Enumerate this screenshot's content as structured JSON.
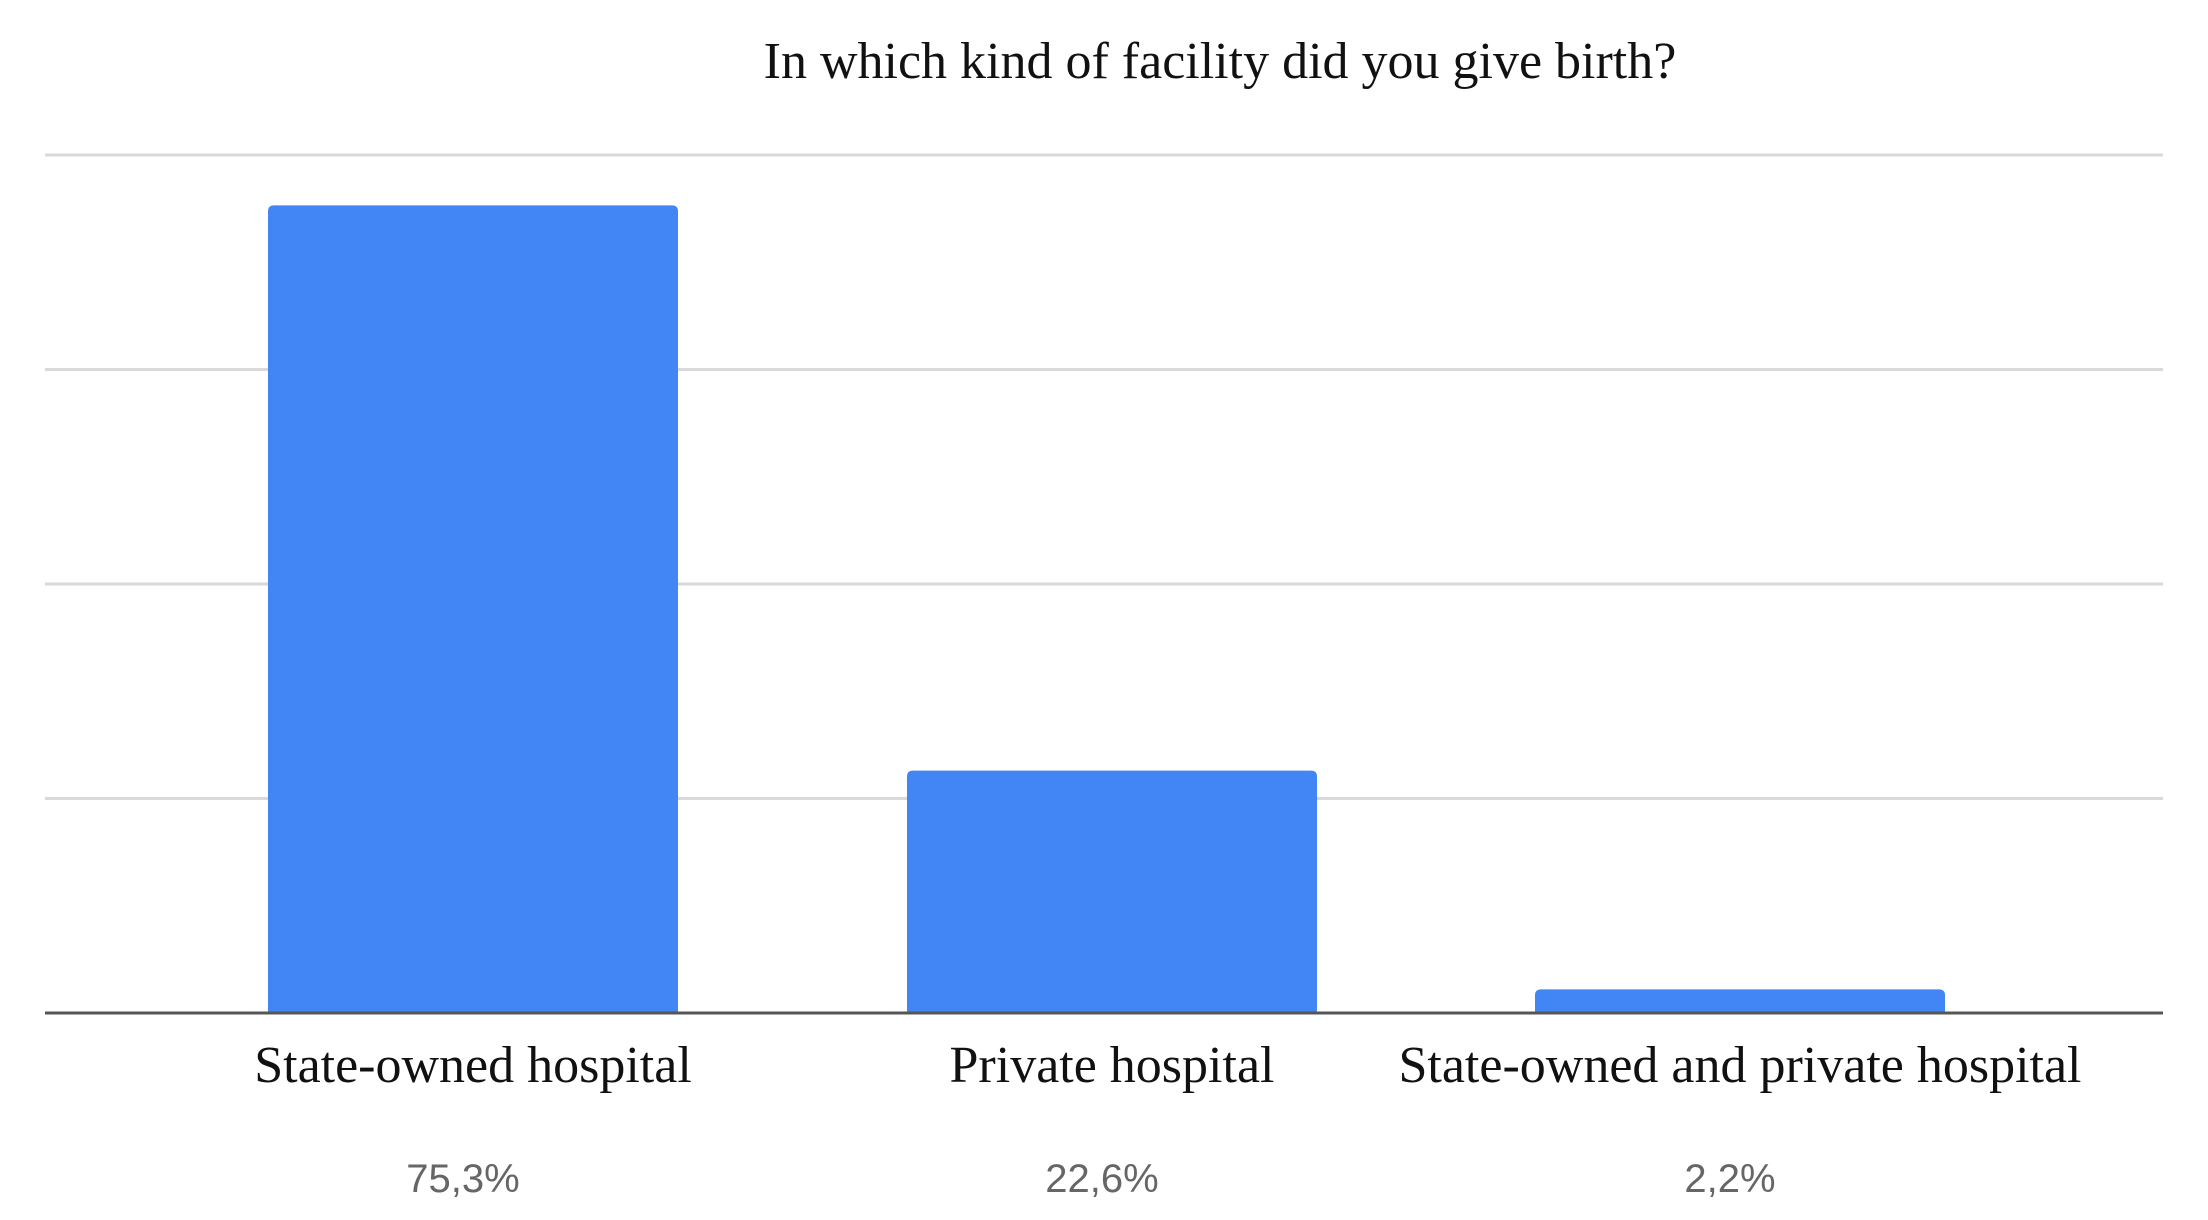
{
  "chart_data": {
    "type": "bar",
    "title": "In which kind of facility did you give birth?",
    "categories": [
      "State-owned hospital",
      "Private hospital",
      "State-owned and private hospital"
    ],
    "values": [
      75.3,
      22.6,
      2.2
    ],
    "value_labels": [
      "75,3%",
      "22,6%",
      "2,2%"
    ],
    "ylim": [
      0,
      80
    ],
    "gridlines": [
      0,
      20,
      40,
      60,
      80
    ],
    "xlabel": "",
    "ylabel": "",
    "grid": true,
    "bar_color": "#4285F4"
  }
}
